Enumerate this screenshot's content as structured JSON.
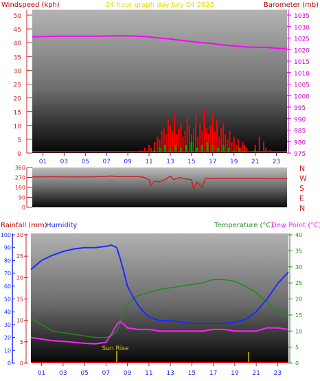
{
  "header": {
    "left_label": "Windspeed (kph)",
    "center_label": "24 hour graph day   July 04 2025",
    "right_label": "Barometer (mb)"
  },
  "colors": {
    "windspeed": "#ff0000",
    "gust_base": "#00a000",
    "barometer": "#ff00ff",
    "direction": "#cc2222",
    "humidity": "#1a2bff",
    "temperature": "#1f8a1f",
    "dewpoint": "#ff22ff",
    "rainfall": "#ff0000",
    "sunrise": "#d8c800",
    "title": "#e8d800",
    "left_axis_red": "#c00000"
  },
  "chart_data": [
    {
      "type": "line",
      "name": "wind-baro",
      "x_ticks": [
        "01",
        "03",
        "05",
        "07",
        "09",
        "11",
        "13",
        "15",
        "17",
        "19",
        "21",
        "23"
      ],
      "xlim": [
        0,
        24
      ],
      "left_axis": {
        "label": "Windspeed (kph)",
        "ylim": [
          0,
          50
        ],
        "ticks": [
          0,
          5,
          10,
          15,
          20,
          25,
          30,
          35,
          40,
          45,
          50
        ]
      },
      "right_axis": {
        "label": "Barometer (mb)",
        "ylim": [
          975,
          1035
        ],
        "ticks": [
          975,
          980,
          985,
          990,
          995,
          1000,
          1005,
          1010,
          1015,
          1020,
          1025,
          1030,
          1035
        ]
      },
      "series": [
        {
          "axis": "right",
          "x": [
            0,
            2,
            4,
            6,
            8,
            9,
            10,
            11,
            12,
            13,
            14,
            15,
            16,
            17,
            18,
            19,
            20,
            21,
            22,
            23,
            24
          ],
          "y": [
            1025.5,
            1025.8,
            1025.8,
            1025.8,
            1026,
            1026,
            1025.8,
            1025.5,
            1025,
            1024.6,
            1024,
            1023.5,
            1023,
            1022.6,
            1022,
            1021.6,
            1021.2,
            1021,
            1021,
            1020.6,
            1020.4
          ]
        },
        {
          "axis": "left",
          "x": [
            10.2,
            10.6,
            11,
            11.2,
            11.5,
            11.8,
            12,
            12.2,
            12.4,
            12.6,
            12.8,
            13,
            13.2,
            13.4,
            13.6,
            13.8,
            14,
            14.2,
            14.4,
            14.6,
            14.8,
            15,
            15.2,
            15.4,
            15.6,
            15.8,
            16,
            16.2,
            16.4,
            16.6,
            16.8,
            17,
            17.2,
            17.4,
            17.6,
            17.8,
            18,
            18.2,
            18.4,
            18.6,
            18.8,
            19,
            19.2,
            19.4,
            19.6,
            19.8,
            20,
            20.2,
            21,
            21.4,
            21.8,
            22,
            22.4
          ],
          "y": [
            1,
            2,
            3,
            2,
            4,
            6,
            5,
            8,
            9,
            7,
            12,
            10,
            8,
            14,
            7,
            9,
            11,
            6,
            8,
            13,
            10,
            7,
            9,
            15,
            6,
            11,
            8,
            16,
            9,
            7,
            10,
            14,
            8,
            12,
            6,
            9,
            11,
            7,
            5,
            8,
            4,
            6,
            3,
            5,
            2,
            4,
            3,
            2,
            3,
            6,
            4,
            2,
            1
          ]
        },
        {
          "axis": "left",
          "x": [
            11.5,
            12,
            12.5,
            13,
            13.5,
            14,
            14.5,
            15,
            15.5,
            16,
            16.5,
            17,
            17.5,
            18,
            18.5,
            19,
            19.5,
            20,
            21,
            22
          ],
          "y": [
            1,
            2,
            3,
            2,
            3,
            2,
            3,
            4,
            2,
            3,
            4,
            3,
            2,
            3,
            2,
            1,
            2,
            1,
            1,
            0.5
          ]
        }
      ]
    },
    {
      "type": "line",
      "name": "wind-direction",
      "xlim": [
        0,
        24
      ],
      "ylim": [
        0,
        360
      ],
      "ticks": [
        0,
        90,
        180,
        270,
        360
      ],
      "compass": [
        "N",
        "W",
        "S",
        "E",
        "N"
      ],
      "x": [
        0,
        2,
        4,
        6,
        7.5,
        8,
        9,
        10,
        10.5,
        11,
        11.2,
        11.5,
        12,
        12.5,
        13,
        13.3,
        13.6,
        14,
        14.5,
        15,
        15.2,
        15.5,
        16,
        16.3,
        16.6,
        17,
        17.5,
        18,
        19,
        20,
        21,
        22,
        23,
        24
      ],
      "y": [
        275,
        276,
        275,
        276,
        283,
        278,
        278,
        278,
        272,
        250,
        195,
        235,
        230,
        250,
        283,
        250,
        262,
        268,
        255,
        250,
        160,
        230,
        180,
        258,
        262,
        258,
        260,
        262,
        262,
        260,
        262,
        258,
        258,
        258
      ]
    },
    {
      "type": "line",
      "name": "rain-humidity-temp",
      "x_ticks": [
        "01",
        "03",
        "05",
        "07",
        "09",
        "11",
        "13",
        "15",
        "17",
        "19",
        "21",
        "23"
      ],
      "xlim": [
        0,
        24
      ],
      "axes": {
        "humidity_label": "Humidity",
        "humidity_ticks": [
          0,
          10,
          20,
          30,
          40,
          50,
          60,
          70,
          80,
          90,
          100
        ],
        "humidity_ylim": [
          0,
          100
        ],
        "rainfall_label": "Rainfall (mm)",
        "rainfall_ticks": [
          0,
          5,
          10,
          15,
          20,
          25,
          30
        ],
        "rainfall_ylim": [
          0,
          30
        ],
        "temperature_label": "Temperature (°C)",
        "dewpoint_label": "Dew Point (°C)",
        "temp_ticks": [
          0,
          5,
          10,
          15,
          20,
          25,
          30,
          35,
          40
        ],
        "temp_ylim": [
          0,
          40
        ]
      },
      "annotation": {
        "text": "Sun Rise",
        "x": 8.0
      },
      "sunset_x": 20.3,
      "series": [
        {
          "x": [
            0,
            1,
            2,
            3,
            4,
            5,
            6,
            7,
            7.5,
            8,
            8.3,
            8.7,
            9,
            9.5,
            10,
            10.5,
            11,
            12,
            13,
            14,
            15,
            16,
            17,
            18,
            19,
            20,
            21,
            22,
            23,
            24
          ],
          "y": [
            73,
            80,
            84,
            87,
            89,
            90,
            90,
            91,
            92,
            90,
            82,
            70,
            60,
            52,
            45,
            40,
            36,
            33,
            33,
            32,
            31,
            31,
            31,
            31,
            32,
            34,
            40,
            50,
            62,
            71
          ]
        },
        {
          "x": [
            0,
            1,
            2,
            3,
            4,
            5,
            6,
            7,
            7.5,
            8,
            8.5,
            9,
            9.5,
            10,
            11,
            12,
            13,
            14,
            15,
            16,
            17,
            18,
            19,
            20,
            21,
            22,
            23,
            24
          ],
          "y": [
            14,
            12,
            10,
            9.5,
            9,
            8.5,
            8,
            8,
            8.5,
            10,
            14,
            18,
            20,
            21,
            22,
            23,
            23.5,
            24,
            24.5,
            25,
            26,
            26,
            25.5,
            24,
            22,
            19,
            16,
            14
          ]
        },
        {
          "x": [
            0,
            1,
            2,
            3,
            4,
            5,
            6,
            7,
            7.5,
            8,
            8.3,
            8.7,
            9,
            10,
            11,
            12,
            13,
            14,
            15,
            16,
            17,
            18,
            19,
            20,
            21,
            22,
            23,
            24
          ],
          "y": [
            8,
            7.5,
            7,
            6.8,
            6.5,
            6.2,
            6,
            6.5,
            9,
            12,
            13,
            12,
            11,
            10.5,
            10.5,
            10,
            10,
            10,
            10,
            10,
            10.5,
            10.5,
            10,
            10,
            10,
            11,
            11,
            10.5
          ]
        },
        {
          "x": [
            0,
            24
          ],
          "y": [
            0,
            0
          ]
        }
      ]
    }
  ]
}
